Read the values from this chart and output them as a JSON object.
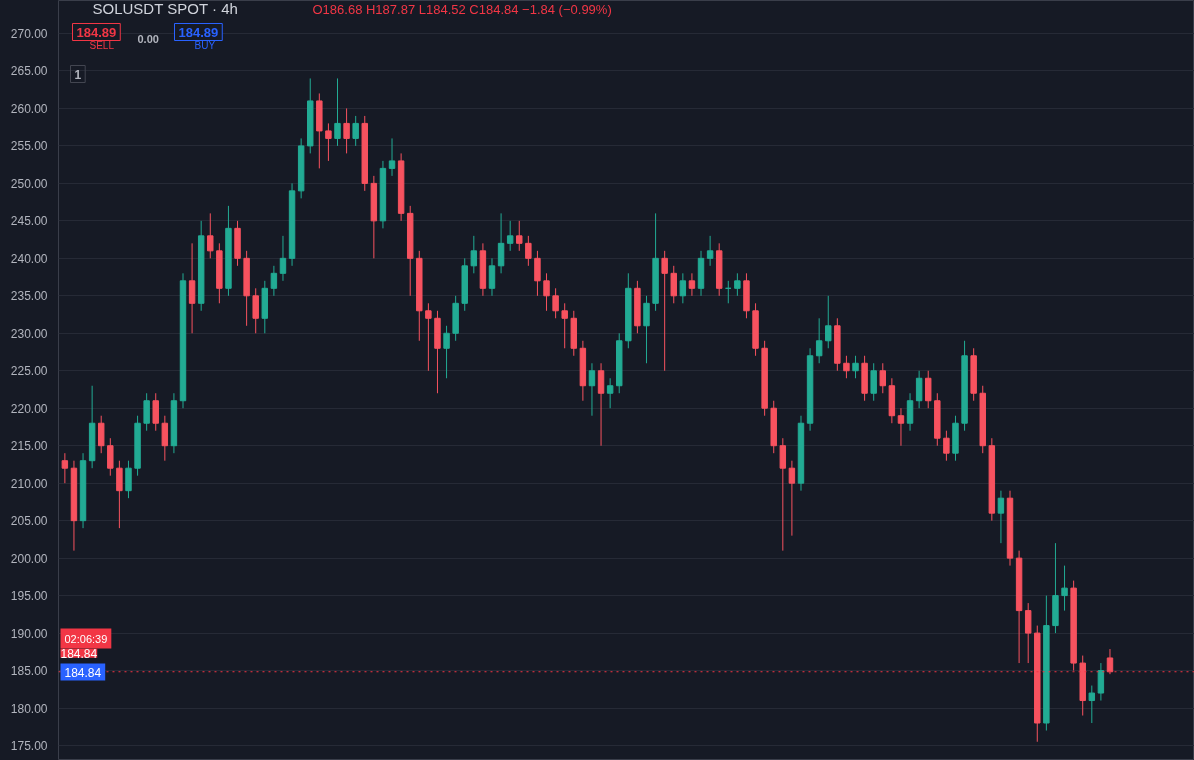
{
  "chart_data": {
    "type": "candlestick",
    "title": "SOLUSDT SPOT · 4h",
    "subtitle": "O186.68 H187.87 L184.52 C184.84 −1.84 (−0.99%)",
    "categories": [
      null,
      null,
      null,
      null,
      null,
      null,
      null,
      null,
      null,
      null,
      null,
      null,
      null,
      null,
      null,
      null,
      null,
      null,
      null,
      null,
      null,
      null,
      null,
      null,
      null,
      null,
      null,
      null,
      null,
      null,
      null,
      null,
      null,
      null,
      null,
      null,
      null,
      null,
      null,
      null,
      null,
      null,
      null,
      null,
      null,
      null,
      null,
      null,
      null,
      null,
      null,
      null,
      null,
      null,
      null,
      null,
      null,
      null,
      null,
      null,
      null,
      null,
      null,
      null,
      null,
      null,
      null,
      null,
      null,
      null,
      null,
      null,
      null,
      null,
      null,
      null,
      null,
      null,
      null,
      null,
      null,
      null,
      null,
      null,
      null,
      null,
      null,
      null,
      null,
      null,
      null,
      null,
      null,
      null,
      null,
      null,
      null,
      null,
      null,
      null,
      null,
      null,
      null,
      null,
      null,
      null,
      null,
      null,
      null,
      null,
      null,
      null,
      null,
      null,
      null,
      null
    ],
    "ohlc": [
      [
        213,
        214,
        210,
        212
      ],
      [
        212,
        213,
        201,
        205
      ],
      [
        205,
        214,
        204,
        213
      ],
      [
        213,
        223,
        212,
        218
      ],
      [
        218,
        219,
        214,
        215
      ],
      [
        215,
        216,
        211,
        212
      ],
      [
        212,
        213,
        204,
        209
      ],
      [
        209,
        213,
        208,
        212
      ],
      [
        212,
        219,
        211,
        218
      ],
      [
        218,
        222,
        217,
        221
      ],
      [
        221,
        222,
        217,
        218
      ],
      [
        218,
        219,
        213,
        215
      ],
      [
        215,
        222,
        214,
        221
      ],
      [
        221,
        238,
        220,
        237
      ],
      [
        237,
        242,
        230,
        234
      ],
      [
        234,
        245,
        233,
        243
      ],
      [
        243,
        246,
        240,
        241
      ],
      [
        241,
        242,
        234,
        236
      ],
      [
        236,
        247,
        235,
        244
      ],
      [
        244,
        245,
        239,
        240
      ],
      [
        240,
        241,
        231,
        235
      ],
      [
        235,
        236,
        230,
        232
      ],
      [
        232,
        237,
        230,
        236
      ],
      [
        236,
        239,
        235,
        238
      ],
      [
        238,
        243,
        237,
        240
      ],
      [
        240,
        250,
        239,
        249
      ],
      [
        249,
        256,
        248,
        255
      ],
      [
        255,
        264,
        254,
        261
      ],
      [
        261,
        262,
        252,
        257
      ],
      [
        257,
        258,
        253,
        256
      ],
      [
        256,
        264,
        255,
        258
      ],
      [
        258,
        260,
        254,
        256
      ],
      [
        256,
        259,
        255,
        258
      ],
      [
        258,
        259,
        249,
        250
      ],
      [
        250,
        251,
        240,
        245
      ],
      [
        245,
        253,
        244,
        252
      ],
      [
        252,
        256,
        251,
        253
      ],
      [
        253,
        254,
        245,
        246
      ],
      [
        246,
        247,
        235,
        240
      ],
      [
        240,
        241,
        229,
        233
      ],
      [
        233,
        234,
        225,
        232
      ],
      [
        232,
        233,
        222,
        228
      ],
      [
        228,
        231,
        224,
        230
      ],
      [
        230,
        235,
        229,
        234
      ],
      [
        234,
        240,
        233,
        239
      ],
      [
        239,
        243,
        238,
        241
      ],
      [
        241,
        242,
        235,
        236
      ],
      [
        236,
        240,
        235,
        239
      ],
      [
        239,
        246,
        238,
        242
      ],
      [
        242,
        245,
        241,
        243
      ],
      [
        243,
        245,
        241,
        242
      ],
      [
        242,
        243,
        239,
        240
      ],
      [
        240,
        241,
        235,
        237
      ],
      [
        237,
        238,
        233,
        235
      ],
      [
        235,
        236,
        232,
        233
      ],
      [
        233,
        234,
        228,
        232
      ],
      [
        232,
        233,
        227,
        228
      ],
      [
        228,
        229,
        221,
        223
      ],
      [
        223,
        226,
        219,
        225
      ],
      [
        225,
        226,
        215,
        222
      ],
      [
        222,
        224,
        220,
        223
      ],
      [
        223,
        230,
        222,
        229
      ],
      [
        229,
        238,
        228,
        236
      ],
      [
        236,
        237,
        230,
        231
      ],
      [
        231,
        235,
        226,
        234
      ],
      [
        234,
        246,
        233,
        240
      ],
      [
        240,
        241,
        225,
        238
      ],
      [
        238,
        239,
        234,
        235
      ],
      [
        235,
        238,
        234,
        237
      ],
      [
        237,
        238,
        235,
        236
      ],
      [
        236,
        241,
        235,
        240
      ],
      [
        240,
        243,
        239,
        241
      ],
      [
        241,
        242,
        235,
        236
      ],
      [
        236,
        237,
        234,
        236
      ],
      [
        236,
        238,
        235,
        237
      ],
      [
        237,
        238,
        232,
        233
      ],
      [
        233,
        234,
        227,
        228
      ],
      [
        228,
        229,
        219,
        220
      ],
      [
        220,
        221,
        214,
        215
      ],
      [
        215,
        216,
        201,
        212
      ],
      [
        212,
        213,
        203,
        210
      ],
      [
        210,
        219,
        209,
        218
      ],
      [
        218,
        228,
        217,
        227
      ],
      [
        227,
        232,
        226,
        229
      ],
      [
        229,
        235,
        228,
        231
      ],
      [
        231,
        232,
        225,
        226
      ],
      [
        226,
        227,
        224,
        225
      ],
      [
        225,
        227,
        224,
        226
      ],
      [
        226,
        227,
        221,
        222
      ],
      [
        222,
        226,
        221,
        225
      ],
      [
        225,
        226,
        222,
        223
      ],
      [
        223,
        224,
        218,
        219
      ],
      [
        219,
        220,
        215,
        218
      ],
      [
        218,
        222,
        217,
        221
      ],
      [
        221,
        225,
        220,
        224
      ],
      [
        224,
        225,
        220,
        221
      ],
      [
        221,
        222,
        215,
        216
      ],
      [
        216,
        217,
        213,
        214
      ],
      [
        214,
        219,
        213,
        218
      ],
      [
        218,
        229,
        217,
        227
      ],
      [
        227,
        228,
        221,
        222
      ],
      [
        222,
        223,
        214,
        215
      ],
      [
        215,
        216,
        205,
        206
      ],
      [
        206,
        209,
        202,
        208
      ],
      [
        208,
        209,
        199,
        200
      ],
      [
        200,
        201,
        186,
        193
      ],
      [
        193,
        194,
        186,
        190
      ],
      [
        190,
        191,
        175.5,
        178
      ],
      [
        178,
        195,
        177,
        191
      ],
      [
        191,
        202,
        190,
        195
      ],
      [
        195,
        199,
        193,
        196
      ],
      [
        196,
        197,
        185,
        186
      ],
      [
        186,
        187,
        179,
        181
      ],
      [
        181,
        183,
        178,
        182
      ],
      [
        182,
        186,
        181,
        185
      ],
      [
        186.68,
        187.87,
        184.52,
        184.84
      ]
    ],
    "colors": [
      "#f7525f",
      "#f7525f",
      "#22ab94",
      "#22ab94",
      "#f7525f",
      "#f7525f",
      "#f7525f",
      "#22ab94",
      "#22ab94",
      "#22ab94",
      "#f7525f",
      "#f7525f",
      "#22ab94",
      "#22ab94",
      "#f7525f",
      "#22ab94",
      "#f7525f",
      "#f7525f",
      "#22ab94",
      "#f7525f",
      "#f7525f",
      "#f7525f",
      "#22ab94",
      "#22ab94",
      "#22ab94",
      "#22ab94",
      "#22ab94",
      "#22ab94",
      "#f7525f",
      "#f7525f",
      "#22ab94",
      "#f7525f",
      "#22ab94",
      "#f7525f",
      "#f7525f",
      "#22ab94",
      "#22ab94",
      "#f7525f",
      "#f7525f",
      "#f7525f",
      "#f7525f",
      "#f7525f",
      "#22ab94",
      "#22ab94",
      "#22ab94",
      "#22ab94",
      "#f7525f",
      "#22ab94",
      "#22ab94",
      "#22ab94",
      "#f7525f",
      "#f7525f",
      "#f7525f",
      "#f7525f",
      "#f7525f",
      "#f7525f",
      "#f7525f",
      "#f7525f",
      "#22ab94",
      "#f7525f",
      "#22ab94",
      "#22ab94",
      "#22ab94",
      "#f7525f",
      "#22ab94",
      "#22ab94",
      "#f7525f",
      "#f7525f",
      "#22ab94",
      "#f7525f",
      "#22ab94",
      "#22ab94",
      "#f7525f",
      "#22ab94",
      "#22ab94",
      "#f7525f",
      "#f7525f",
      "#f7525f",
      "#f7525f",
      "#f7525f",
      "#f7525f",
      "#22ab94",
      "#22ab94",
      "#22ab94",
      "#22ab94",
      "#f7525f",
      "#f7525f",
      "#22ab94",
      "#f7525f",
      "#22ab94",
      "#f7525f",
      "#f7525f",
      "#f7525f",
      "#22ab94",
      "#22ab94",
      "#f7525f",
      "#f7525f",
      "#f7525f",
      "#22ab94",
      "#22ab94",
      "#f7525f",
      "#f7525f",
      "#f7525f",
      "#22ab94",
      "#f7525f",
      "#f7525f",
      "#f7525f",
      "#f7525f",
      "#22ab94",
      "#22ab94",
      "#22ab94",
      "#f7525f",
      "#f7525f",
      "#22ab94",
      "#22ab94",
      "#f7525f"
    ],
    "ylim": [
      173.0,
      274.4
    ],
    "yticks": [
      {
        "value": 175,
        "label": "175.00"
      },
      {
        "value": 180,
        "label": "180.00"
      },
      {
        "value": 185,
        "label": "185.00"
      },
      {
        "value": 190,
        "label": "190.00"
      },
      {
        "value": 195,
        "label": "195.00"
      },
      {
        "value": 200,
        "label": "200.00"
      },
      {
        "value": 205,
        "label": "205.00"
      },
      {
        "value": 210,
        "label": "210.00"
      },
      {
        "value": 215,
        "label": "215.00"
      },
      {
        "value": 220,
        "label": "220.00"
      },
      {
        "value": 225,
        "label": "225.00"
      },
      {
        "value": 230,
        "label": "230.00"
      },
      {
        "value": 235,
        "label": "235.00"
      },
      {
        "value": 240,
        "label": "240.00"
      },
      {
        "value": 245,
        "label": "245.00"
      },
      {
        "value": 250,
        "label": "250.00"
      },
      {
        "value": 255,
        "label": "255.00"
      },
      {
        "value": 260,
        "label": "260.00"
      },
      {
        "value": 265,
        "label": "265.00"
      },
      {
        "value": 270,
        "label": "270.00"
      }
    ],
    "ref_lines": [
      {
        "axis": "y",
        "value": 184.84,
        "label": "184.84",
        "color": "#f23645",
        "line_style": "dotted"
      }
    ],
    "annotations": [
      "184.89",
      "SELL",
      "0.00",
      "184.89",
      "BUY",
      "1",
      "02:06:39",
      "184.84"
    ],
    "grid": "y",
    "tick_labels": "y"
  }
}
